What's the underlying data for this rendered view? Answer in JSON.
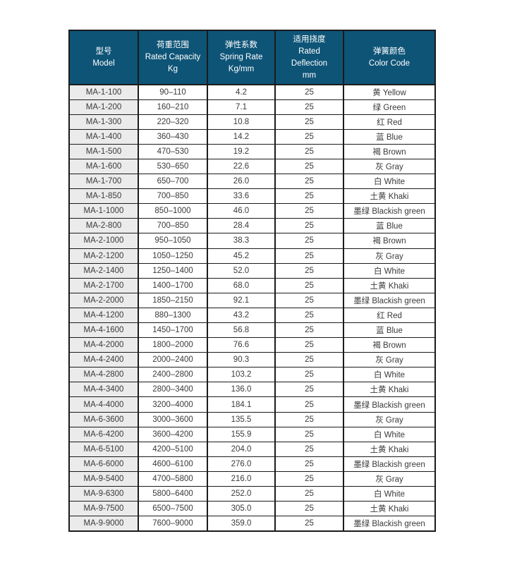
{
  "colors": {
    "header_bg": "#0e5477",
    "header_text": "#ffffff",
    "first_column_bg": "#ebebeb",
    "body_text": "#3a3a3a",
    "grid_border": "#1b1b1b",
    "page_bg": "#ffffff"
  },
  "table": {
    "columns": [
      {
        "id": "model",
        "lines": [
          "型号",
          "Model"
        ]
      },
      {
        "id": "rated-capacity",
        "lines": [
          "荷重范围",
          "Rated Capacity",
          "Kg"
        ]
      },
      {
        "id": "spring-rate",
        "lines": [
          "弹性系数",
          "Spring Rate",
          "Kg/mm"
        ]
      },
      {
        "id": "rated-deflection",
        "lines": [
          "适用挠度",
          "Rated",
          "Deflection",
          "mm"
        ]
      },
      {
        "id": "color-code",
        "lines": [
          "弹簧颜色",
          "Color Code"
        ]
      }
    ],
    "rows": [
      [
        "MA-1-100",
        "90–110",
        "4.2",
        "25",
        "黄 Yellow"
      ],
      [
        "MA-1-200",
        "160–210",
        "7.1",
        "25",
        "绿 Green"
      ],
      [
        "MA-1-300",
        "220–320",
        "10.8",
        "25",
        "红 Red"
      ],
      [
        "MA-1-400",
        "360–430",
        "14.2",
        "25",
        "蓝 Blue"
      ],
      [
        "MA-1-500",
        "470–530",
        "19.2",
        "25",
        "褐 Brown"
      ],
      [
        "MA-1-600",
        "530–650",
        "22.6",
        "25",
        "灰 Gray"
      ],
      [
        "MA-1-700",
        "650–700",
        "26.0",
        "25",
        "白 White"
      ],
      [
        "MA-1-850",
        "700–850",
        "33.6",
        "25",
        "土黄 Khaki"
      ],
      [
        "MA-1-1000",
        "850–1000",
        "46.0",
        "25",
        "墨绿 Blackish green"
      ],
      [
        "MA-2-800",
        "700–850",
        "28.4",
        "25",
        "蓝 Blue"
      ],
      [
        "MA-2-1000",
        "950–1050",
        "38.3",
        "25",
        "褐 Brown"
      ],
      [
        "MA-2-1200",
        "1050–1250",
        "45.2",
        "25",
        "灰 Gray"
      ],
      [
        "MA-2-1400",
        "1250–1400",
        "52.0",
        "25",
        "白 White"
      ],
      [
        "MA-2-1700",
        "1400–1700",
        "68.0",
        "25",
        "土黄 Khaki"
      ],
      [
        "MA-2-2000",
        "1850–2150",
        "92.1",
        "25",
        "墨绿 Blackish green"
      ],
      [
        "MA-4-1200",
        "880–1300",
        "43.2",
        "25",
        "红 Red"
      ],
      [
        "MA-4-1600",
        "1450–1700",
        "56.8",
        "25",
        "蓝 Blue"
      ],
      [
        "MA-4-2000",
        "1800–2000",
        "76.6",
        "25",
        "褐 Brown"
      ],
      [
        "MA-4-2400",
        "2000–2400",
        "90.3",
        "25",
        "灰 Gray"
      ],
      [
        "MA-4-2800",
        "2400–2800",
        "103.2",
        "25",
        "白 White"
      ],
      [
        "MA-4-3400",
        "2800–3400",
        "136.0",
        "25",
        "土黄 Khaki"
      ],
      [
        "MA-4-4000",
        "3200–4000",
        "184.1",
        "25",
        "墨绿 Blackish green"
      ],
      [
        "MA-6-3600",
        "3000–3600",
        "135.5",
        "25",
        "灰 Gray"
      ],
      [
        "MA-6-4200",
        "3600–4200",
        "155.9",
        "25",
        "白  White"
      ],
      [
        "MA-6-5100",
        "4200–5100",
        "204.0",
        "25",
        "土黄 Khaki"
      ],
      [
        "MA-6-6000",
        "4600–6100",
        "276.0",
        "25",
        "墨绿 Blackish green"
      ],
      [
        "MA-9-5400",
        "4700–5800",
        "216.0",
        "25",
        "灰 Gray"
      ],
      [
        "MA-9-6300",
        "5800–6400",
        "252.0",
        "25",
        "白 White"
      ],
      [
        "MA-9-7500",
        "6500–7500",
        "305.0",
        "25",
        "土黄 Khaki"
      ],
      [
        "MA-9-9000",
        "7600–9000",
        "359.0",
        "25",
        "墨绿 Blackish green"
      ]
    ]
  }
}
